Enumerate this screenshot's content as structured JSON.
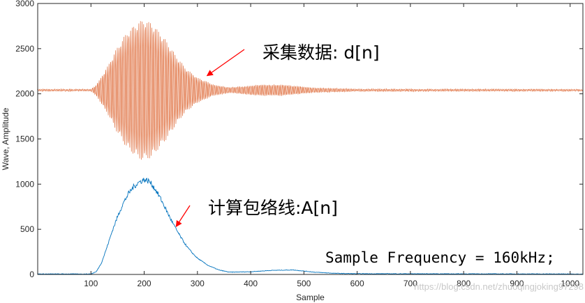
{
  "chart_data": {
    "type": "line",
    "title": "",
    "xlabel": "Sample",
    "ylabel": "Wave, Amplitude",
    "xlim": [
      0,
      1024
    ],
    "ylim": [
      0,
      3000
    ],
    "xticks": [
      100,
      200,
      300,
      400,
      500,
      600,
      700,
      800,
      900,
      1000
    ],
    "yticks": [
      0,
      500,
      1000,
      1500,
      2000,
      2500,
      3000
    ],
    "grid": false,
    "series": [
      {
        "name": "采集数据: d[n]",
        "color": "#d95319",
        "style": "oscillating",
        "baseline": 2040,
        "envelope": [
          {
            "x": 0,
            "y": 10
          },
          {
            "x": 100,
            "y": 10
          },
          {
            "x": 110,
            "y": 60
          },
          {
            "x": 130,
            "y": 250
          },
          {
            "x": 150,
            "y": 480
          },
          {
            "x": 170,
            "y": 660
          },
          {
            "x": 190,
            "y": 760
          },
          {
            "x": 200,
            "y": 780
          },
          {
            "x": 215,
            "y": 740
          },
          {
            "x": 240,
            "y": 560
          },
          {
            "x": 260,
            "y": 380
          },
          {
            "x": 280,
            "y": 230
          },
          {
            "x": 300,
            "y": 140
          },
          {
            "x": 330,
            "y": 60
          },
          {
            "x": 360,
            "y": 30
          },
          {
            "x": 420,
            "y": 60
          },
          {
            "x": 460,
            "y": 60
          },
          {
            "x": 520,
            "y": 25
          },
          {
            "x": 600,
            "y": 12
          },
          {
            "x": 1024,
            "y": 10
          }
        ]
      },
      {
        "name": "计算包络线: A[n]",
        "color": "#0072bd",
        "style": "envelope",
        "points": [
          {
            "x": 0,
            "y": 5
          },
          {
            "x": 100,
            "y": 5
          },
          {
            "x": 110,
            "y": 30
          },
          {
            "x": 120,
            "y": 130
          },
          {
            "x": 130,
            "y": 300
          },
          {
            "x": 140,
            "y": 480
          },
          {
            "x": 150,
            "y": 640
          },
          {
            "x": 160,
            "y": 780
          },
          {
            "x": 170,
            "y": 890
          },
          {
            "x": 180,
            "y": 970
          },
          {
            "x": 190,
            "y": 1020
          },
          {
            "x": 200,
            "y": 1050
          },
          {
            "x": 210,
            "y": 1030
          },
          {
            "x": 220,
            "y": 950
          },
          {
            "x": 230,
            "y": 850
          },
          {
            "x": 240,
            "y": 730
          },
          {
            "x": 250,
            "y": 610
          },
          {
            "x": 260,
            "y": 500
          },
          {
            "x": 270,
            "y": 400
          },
          {
            "x": 280,
            "y": 310
          },
          {
            "x": 290,
            "y": 240
          },
          {
            "x": 300,
            "y": 180
          },
          {
            "x": 320,
            "y": 100
          },
          {
            "x": 340,
            "y": 50
          },
          {
            "x": 360,
            "y": 25
          },
          {
            "x": 400,
            "y": 30
          },
          {
            "x": 440,
            "y": 45
          },
          {
            "x": 480,
            "y": 50
          },
          {
            "x": 520,
            "y": 25
          },
          {
            "x": 560,
            "y": 12
          },
          {
            "x": 600,
            "y": 8
          },
          {
            "x": 1024,
            "y": 5
          }
        ]
      }
    ],
    "annotations": [
      {
        "text": "采集数据: d[n]",
        "target_series": 0
      },
      {
        "text": "计算包络线:A[n]",
        "target_series": 1
      },
      {
        "text": "Sample Frequency = 160kHz;"
      }
    ],
    "annotation_arrow_color": "#ff0000"
  },
  "watermark": "https://blog.csdn.net/zhuoqingjoking97298"
}
